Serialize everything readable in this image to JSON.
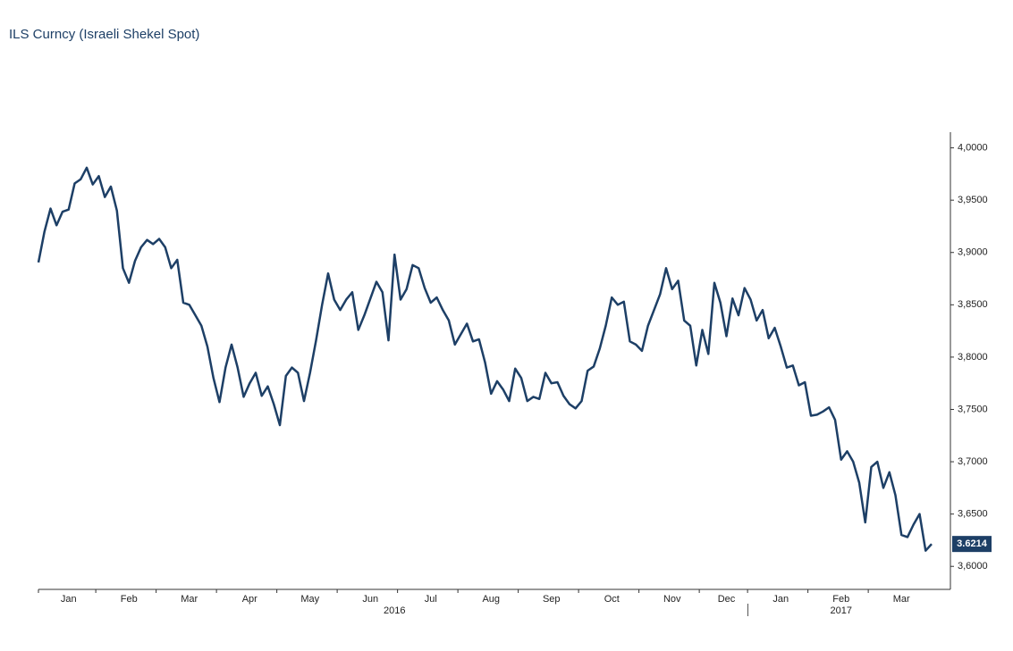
{
  "chart_data": {
    "type": "line",
    "title": "ILS Curncy (Israeli Shekel Spot)",
    "categories": [
      "Jan",
      null,
      null,
      null,
      null,
      null,
      null,
      null,
      null,
      null,
      "Feb",
      null,
      null,
      null,
      null,
      null,
      null,
      null,
      null,
      null,
      "Mar",
      null,
      null,
      null,
      null,
      null,
      null,
      null,
      null,
      null,
      "Apr",
      null,
      null,
      null,
      null,
      null,
      null,
      null,
      null,
      null,
      "May",
      null,
      null,
      null,
      null,
      null,
      null,
      null,
      null,
      null,
      "Jun",
      null,
      null,
      null,
      null,
      null,
      null,
      null,
      null,
      null,
      "Jul",
      null,
      null,
      null,
      null,
      null,
      null,
      null,
      null,
      null,
      "Aug",
      null,
      null,
      null,
      null,
      null,
      null,
      null,
      null,
      null,
      "Sep",
      null,
      null,
      null,
      null,
      null,
      null,
      null,
      null,
      null,
      "Oct",
      null,
      null,
      null,
      null,
      null,
      null,
      null,
      null,
      null,
      "Nov",
      null,
      null,
      null,
      null,
      null,
      null,
      null,
      null,
      null,
      "Dec",
      null,
      null,
      null,
      null,
      null,
      null,
      null,
      "Jan",
      null,
      null,
      null,
      null,
      null,
      null,
      null,
      null,
      null,
      "Feb",
      null,
      null,
      null,
      null,
      null,
      null,
      null,
      null,
      null,
      "Mar",
      null,
      null,
      null,
      null,
      null,
      null,
      null,
      null,
      null,
      null
    ],
    "years": [
      "2016",
      "2017"
    ],
    "series": [
      {
        "name": "ILS Curncy",
        "color": "#1d3f66",
        "values": [
          3.8905,
          3.92,
          3.942,
          3.926,
          3.939,
          3.941,
          3.966,
          3.97,
          3.981,
          3.965,
          3.973,
          3.953,
          3.963,
          3.94,
          3.885,
          3.871,
          3.892,
          3.905,
          3.912,
          3.908,
          3.913,
          3.905,
          3.885,
          3.893,
          3.852,
          3.85,
          3.84,
          3.83,
          3.81,
          3.78,
          3.757,
          3.79,
          3.812,
          3.79,
          3.762,
          3.775,
          3.785,
          3.763,
          3.772,
          3.755,
          3.735,
          3.782,
          3.79,
          3.785,
          3.758,
          3.785,
          3.816,
          3.85,
          3.88,
          3.855,
          3.845,
          3.855,
          3.862,
          3.826,
          3.84,
          3.856,
          3.872,
          3.862,
          3.816,
          3.898,
          3.855,
          3.865,
          3.888,
          3.885,
          3.866,
          3.852,
          3.857,
          3.845,
          3.835,
          3.812,
          3.822,
          3.832,
          3.815,
          3.817,
          3.795,
          3.765,
          3.777,
          3.769,
          3.758,
          3.789,
          3.78,
          3.758,
          3.762,
          3.76,
          3.785,
          3.775,
          3.776,
          3.763,
          3.755,
          3.751,
          3.758,
          3.787,
          3.791,
          3.808,
          3.83,
          3.857,
          3.85,
          3.853,
          3.815,
          3.812,
          3.806,
          3.83,
          3.845,
          3.86,
          3.885,
          3.865,
          3.873,
          3.835,
          3.83,
          3.792,
          3.826,
          3.803,
          3.871,
          3.852,
          3.82,
          3.856,
          3.84,
          3.866,
          3.855,
          3.835,
          3.845,
          3.818,
          3.828,
          3.81,
          3.79,
          3.792,
          3.773,
          3.776,
          3.744,
          3.745,
          3.748,
          3.752,
          3.74,
          3.702,
          3.71,
          3.7,
          3.68,
          3.642,
          3.695,
          3.7,
          3.675,
          3.69,
          3.668,
          3.63,
          3.628,
          3.64,
          3.65,
          3.615,
          3.6214
        ]
      }
    ],
    "last_value_label": "3.6214",
    "ylim": [
      3.578,
      4.015
    ],
    "yticks": [
      {
        "value": 3.6,
        "label": "3,6000"
      },
      {
        "value": 3.65,
        "label": "3,6500"
      },
      {
        "value": 3.7,
        "label": "3,7000"
      },
      {
        "value": 3.75,
        "label": "3,7500"
      },
      {
        "value": 3.8,
        "label": "3,8000"
      },
      {
        "value": 3.85,
        "label": "3,8500"
      },
      {
        "value": 3.9,
        "label": "3,9000"
      },
      {
        "value": 3.95,
        "label": "3,9500"
      },
      {
        "value": 4.0,
        "label": "4,0000"
      }
    ],
    "y_axis_side": "right"
  }
}
